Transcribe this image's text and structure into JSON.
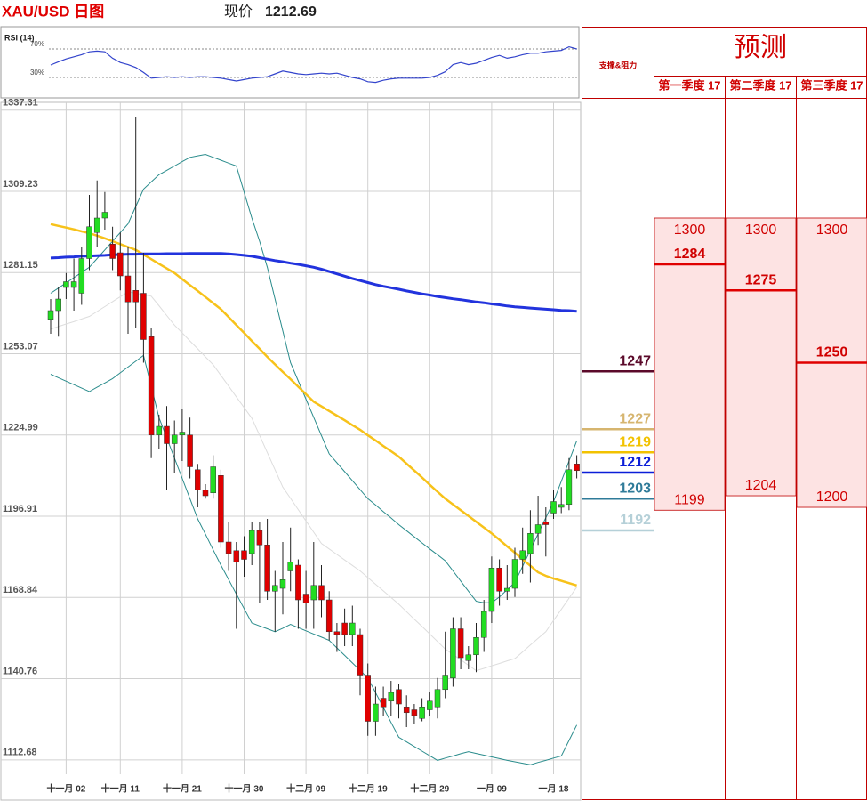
{
  "header": {
    "title": "XAU/USD 日图",
    "price_label": "现价",
    "price": 1212.69
  },
  "chart_data": [
    {
      "type": "candlestick",
      "categories": [
        null,
        null,
        "十一月 02",
        null,
        null,
        null,
        null,
        null,
        null,
        "十一月 11",
        null,
        null,
        null,
        null,
        null,
        null,
        null,
        "十一月 21",
        null,
        null,
        null,
        null,
        null,
        null,
        null,
        "十一月 30",
        null,
        null,
        null,
        null,
        null,
        null,
        null,
        "十二月 09",
        null,
        null,
        null,
        null,
        null,
        null,
        null,
        "十二月 19",
        null,
        null,
        null,
        null,
        null,
        null,
        null,
        "十二月 29",
        null,
        null,
        null,
        null,
        null,
        null,
        null,
        "一月 09",
        null,
        null,
        null,
        null,
        null,
        null,
        null,
        "一月 18",
        null,
        null,
        null
      ],
      "open": [
        1265,
        1268,
        1276,
        1276,
        1274,
        1286,
        1295,
        1300,
        1291,
        1288,
        1280,
        1275,
        1274,
        1259,
        1225,
        1228,
        1222,
        1225,
        1225,
        1213,
        1206,
        1205,
        1211,
        1188,
        1185,
        1185,
        1184,
        1192,
        1187,
        1171,
        1172,
        1178,
        1180,
        1170,
        1168,
        1173,
        1168,
        1157,
        1160,
        1156,
        1156,
        1142,
        1126,
        1134,
        1133,
        1137,
        1131,
        1130,
        1127,
        1130,
        1131,
        1137,
        1141,
        1158,
        1147,
        1149,
        1155,
        1164,
        1179,
        1171,
        1172,
        1182,
        1184,
        1191,
        1195,
        1198,
        1200,
        1201,
        1215
      ],
      "high": [
        1272,
        1276,
        1281,
        1286,
        1290,
        1308,
        1313,
        1309,
        1297,
        1295,
        1290,
        1335,
        1288,
        1262,
        1232,
        1235,
        1230,
        1234,
        1231,
        1215,
        1208,
        1218,
        1213,
        1195,
        1188,
        1190,
        1195,
        1195,
        1196,
        1178,
        1188,
        1193,
        1182,
        1178,
        1188,
        1180,
        1171,
        1160,
        1165,
        1166,
        1158,
        1146,
        1138,
        1138,
        1140,
        1139,
        1135,
        1132,
        1134,
        1136,
        1141,
        1157,
        1162,
        1162,
        1152,
        1160,
        1168,
        1183,
        1182,
        1180,
        1186,
        1193,
        1199,
        1204,
        1200,
        1206,
        1207,
        1217,
        1218
      ],
      "low": [
        1260,
        1259,
        1272,
        1268,
        1270,
        1282,
        1290,
        1296,
        1282,
        1275,
        1260,
        1262,
        1250,
        1217,
        1220,
        1206,
        1212,
        1216,
        1210,
        1200,
        1203,
        1203,
        1186,
        1178,
        1158,
        1176,
        1180,
        1167,
        1168,
        1157,
        1163,
        1171,
        1158,
        1158,
        1158,
        1162,
        1154,
        1150,
        1152,
        1152,
        1135,
        1121,
        1121,
        1128,
        1128,
        1127,
        1124,
        1125,
        1126,
        1128,
        1127,
        1134,
        1138,
        1144,
        1144,
        1143,
        1150,
        1160,
        1166,
        1168,
        1169,
        1177,
        1174,
        1187,
        1183,
        1196,
        1198,
        1199,
        1210
      ],
      "close": [
        1268,
        1272,
        1278,
        1278,
        1286,
        1297,
        1300,
        1302,
        1286,
        1280,
        1271,
        1271,
        1258,
        1225,
        1228,
        1222,
        1225,
        1226,
        1214,
        1206,
        1204,
        1214,
        1188,
        1184,
        1181,
        1182,
        1192,
        1187,
        1171,
        1173,
        1175,
        1181,
        1168,
        1167,
        1173,
        1168,
        1157,
        1156,
        1156,
        1160,
        1142,
        1126,
        1132,
        1131,
        1136,
        1132,
        1129,
        1128,
        1131,
        1133,
        1137,
        1142,
        1158,
        1148,
        1149,
        1155,
        1164,
        1179,
        1171,
        1172,
        1182,
        1185,
        1191,
        1194,
        1194,
        1202,
        1201,
        1213,
        1212.69
      ],
      "up_color": "#22dd22",
      "down_color": "#e00000",
      "lines": [
        {
          "color": "#2233dd",
          "values": [
            1286.2,
            1286.3,
            1286.5,
            1286.6,
            1286.8,
            1286.9,
            1287.0,
            1287.1,
            1287.3,
            1287.4,
            1287.5,
            1287.5,
            1287.6,
            1287.6,
            1287.6,
            1287.7,
            1287.7,
            1287.7,
            1287.8,
            1287.8,
            1287.8,
            1287.8,
            1287.8,
            1287.6,
            1287.4,
            1287.1,
            1286.8,
            1286.3,
            1285.8,
            1285.3,
            1284.9,
            1284.4,
            1284.0,
            1283.5,
            1283.0,
            1282.3,
            1281.5,
            1280.7,
            1279.9,
            1279.1,
            1278.4,
            1277.7,
            1277.0,
            1276.4,
            1275.9,
            1275.4,
            1274.8,
            1274.3,
            1273.8,
            1273.4,
            1272.9,
            1272.5,
            1272.1,
            1271.8,
            1271.4,
            1271.0,
            1270.7,
            1270.3,
            1270.0,
            1269.6,
            1269.3,
            1269.1,
            1268.9,
            1268.7,
            1268.5,
            1268.3,
            1268.1,
            1268.0,
            1267.8
          ]
        },
        {
          "color": "#f7c21a",
          "values": [
            1297.9,
            1297.3,
            1296.7,
            1296.1,
            1295.4,
            1294.8,
            1293.9,
            1293.0,
            1292.0,
            1291.0,
            1290.0,
            1289.0,
            1287.4,
            1285.8,
            1284.2,
            1282.6,
            1281.0,
            1278.9,
            1276.8,
            1274.8,
            1272.7,
            1270.6,
            1268.5,
            1265.8,
            1263.0,
            1260.3,
            1257.5,
            1254.8,
            1252.0,
            1249.4,
            1246.8,
            1244.3,
            1241.7,
            1239.1,
            1236.5,
            1234.9,
            1233.3,
            1231.7,
            1230.1,
            1228.4,
            1226.8,
            1224.9,
            1223.1,
            1221.2,
            1219.4,
            1217.5,
            1215.1,
            1212.7,
            1210.3,
            1207.8,
            1205.4,
            1203.0,
            1201.0,
            1199.0,
            1197.0,
            1195.0,
            1193.0,
            1191.0,
            1188.8,
            1186.5,
            1184.3,
            1182.0,
            1179.8,
            1177.5,
            1176.3,
            1175.4,
            1174.6,
            1173.8,
            1173.0
          ]
        },
        {
          "color": "#2a8c8c",
          "values": [
            1274,
            1275.8,
            1277.6,
            1279.4,
            1281.2,
            1283,
            1286,
            1289,
            1292,
            1295,
            1298,
            1304,
            1310,
            1312.5,
            1315,
            1316.5,
            1318,
            1319.5,
            1321,
            1321.5,
            1322,
            1321,
            1320,
            1319,
            1318,
            1309,
            1300,
            1292,
            1283,
            1272,
            1261,
            1250,
            1243.7,
            1237.4,
            1231.1,
            1224.8,
            1218.5,
            1215.4,
            1212.3,
            1209.2,
            1206.1,
            1203,
            1200.8,
            1198.5,
            1196.3,
            1194,
            1191.9,
            1189.8,
            1187.7,
            1185.6,
            1183.6,
            1181.5,
            1178,
            1174.5,
            1171,
            1167.5,
            1167,
            1167,
            1169,
            1171.5,
            1174,
            1179.6,
            1185.2,
            1190.8,
            1196.4,
            1202,
            1209,
            1216,
            1223
          ]
        },
        {
          "color": "#2a8c8c",
          "values": [
            1246,
            1244.8,
            1243.6,
            1242.4,
            1241.2,
            1240,
            1241.5,
            1243,
            1244.5,
            1246.5,
            1248.5,
            1250.5,
            1252.5,
            1241.8,
            1231,
            1224,
            1217,
            1210,
            1203,
            1196,
            1190.7,
            1185.3,
            1180,
            1175,
            1170,
            1165,
            1160,
            1159,
            1158,
            1157,
            1158.2,
            1159.5,
            1158.4,
            1157.3,
            1156.2,
            1155.1,
            1154,
            1151.4,
            1148.8,
            1146.2,
            1143.6,
            1141,
            1135.9,
            1130.8,
            1125.6,
            1120.5,
            1118.9,
            1117.3,
            1115.7,
            1114.1,
            1112.5,
            1113.3,
            1114,
            1114.8,
            1115.5,
            1114.9,
            1114.3,
            1113.7,
            1113.1,
            1112.5,
            1112,
            1111.5,
            1111,
            1111.8,
            1112.5,
            1113.3,
            1114,
            1119.4,
            1124.7
          ]
        },
        {
          "color": "#dddddd",
          "values": [
            1261.6,
            1262.5,
            1263.4,
            1264.2,
            1265.1,
            1266,
            1267.7,
            1269.4,
            1271.1,
            1272.8,
            1274.5,
            1274,
            1273.5,
            1273,
            1269.7,
            1266.3,
            1263,
            1260.3,
            1257.5,
            1254.8,
            1252,
            1249.3,
            1245.6,
            1241.9,
            1238.2,
            1234.5,
            1230.8,
            1224.9,
            1218.9,
            1213,
            1207,
            1203.1,
            1199.2,
            1195.3,
            1191.4,
            1187.5,
            1185.6,
            1183.7,
            1181.8,
            1179.9,
            1178,
            1175.7,
            1173.4,
            1171.1,
            1168.8,
            1166.5,
            1163.9,
            1161.3,
            1158.8,
            1156.2,
            1153.6,
            1151,
            1149.1,
            1147.3,
            1145.4,
            1143.5,
            1144.3,
            1145.2,
            1146,
            1146.9,
            1147.7,
            1150,
            1152.4,
            1154.7,
            1157,
            1160.9,
            1164.7,
            1168.6,
            1172.4
          ]
        }
      ],
      "ylim": [
        1107.7,
        1340
      ],
      "yticks": [
        1337.31,
        1309.23,
        1281.15,
        1253.07,
        1224.99,
        1196.91,
        1168.84,
        1140.76,
        1112.68
      ],
      "grid": true
    },
    {
      "type": "line",
      "title": "RSI (14)",
      "color": "#3344cc",
      "values": [
        47.5,
        52,
        56,
        59,
        62,
        66,
        67,
        66,
        57,
        51,
        48,
        44,
        37,
        29,
        30,
        31,
        30,
        31,
        30,
        31,
        31,
        30,
        29,
        27,
        25,
        27,
        29,
        30,
        31,
        35,
        39,
        37,
        35,
        34,
        35,
        36,
        35,
        36,
        33,
        30,
        28,
        24,
        23,
        26,
        28,
        29,
        29,
        29,
        29,
        30,
        33,
        38,
        48,
        51,
        48,
        50,
        54,
        58,
        61,
        57,
        59,
        62,
        64,
        64,
        66,
        67,
        68,
        73,
        70
      ],
      "ylim": [
        0,
        100
      ],
      "yticks": [
        {
          "value": 70,
          "label": "70%"
        },
        {
          "value": 30,
          "label": "30%"
        }
      ],
      "grid": true
    }
  ],
  "support_resistance": {
    "title": "支撑&阻力",
    "levels": [
      {
        "value": 1247,
        "color": "#5b0a2a"
      },
      {
        "value": 1227,
        "color": "#d6b56f"
      },
      {
        "value": 1219,
        "color": "#f2c200"
      },
      {
        "value": 1212,
        "color": "#0b1ed8"
      },
      {
        "value": 1203,
        "color": "#2f7b99"
      },
      {
        "value": 1192,
        "color": "#b5d0d8"
      }
    ]
  },
  "forecast": {
    "title": "预测",
    "columns": [
      {
        "label": "第一季度 17",
        "high": 1300,
        "target": 1284,
        "low": 1199
      },
      {
        "label": "第二季度 17",
        "high": 1300,
        "target": 1275,
        "low": 1204
      },
      {
        "label": "第三季度 17",
        "high": 1300,
        "target": 1250,
        "low": 1200
      }
    ]
  }
}
